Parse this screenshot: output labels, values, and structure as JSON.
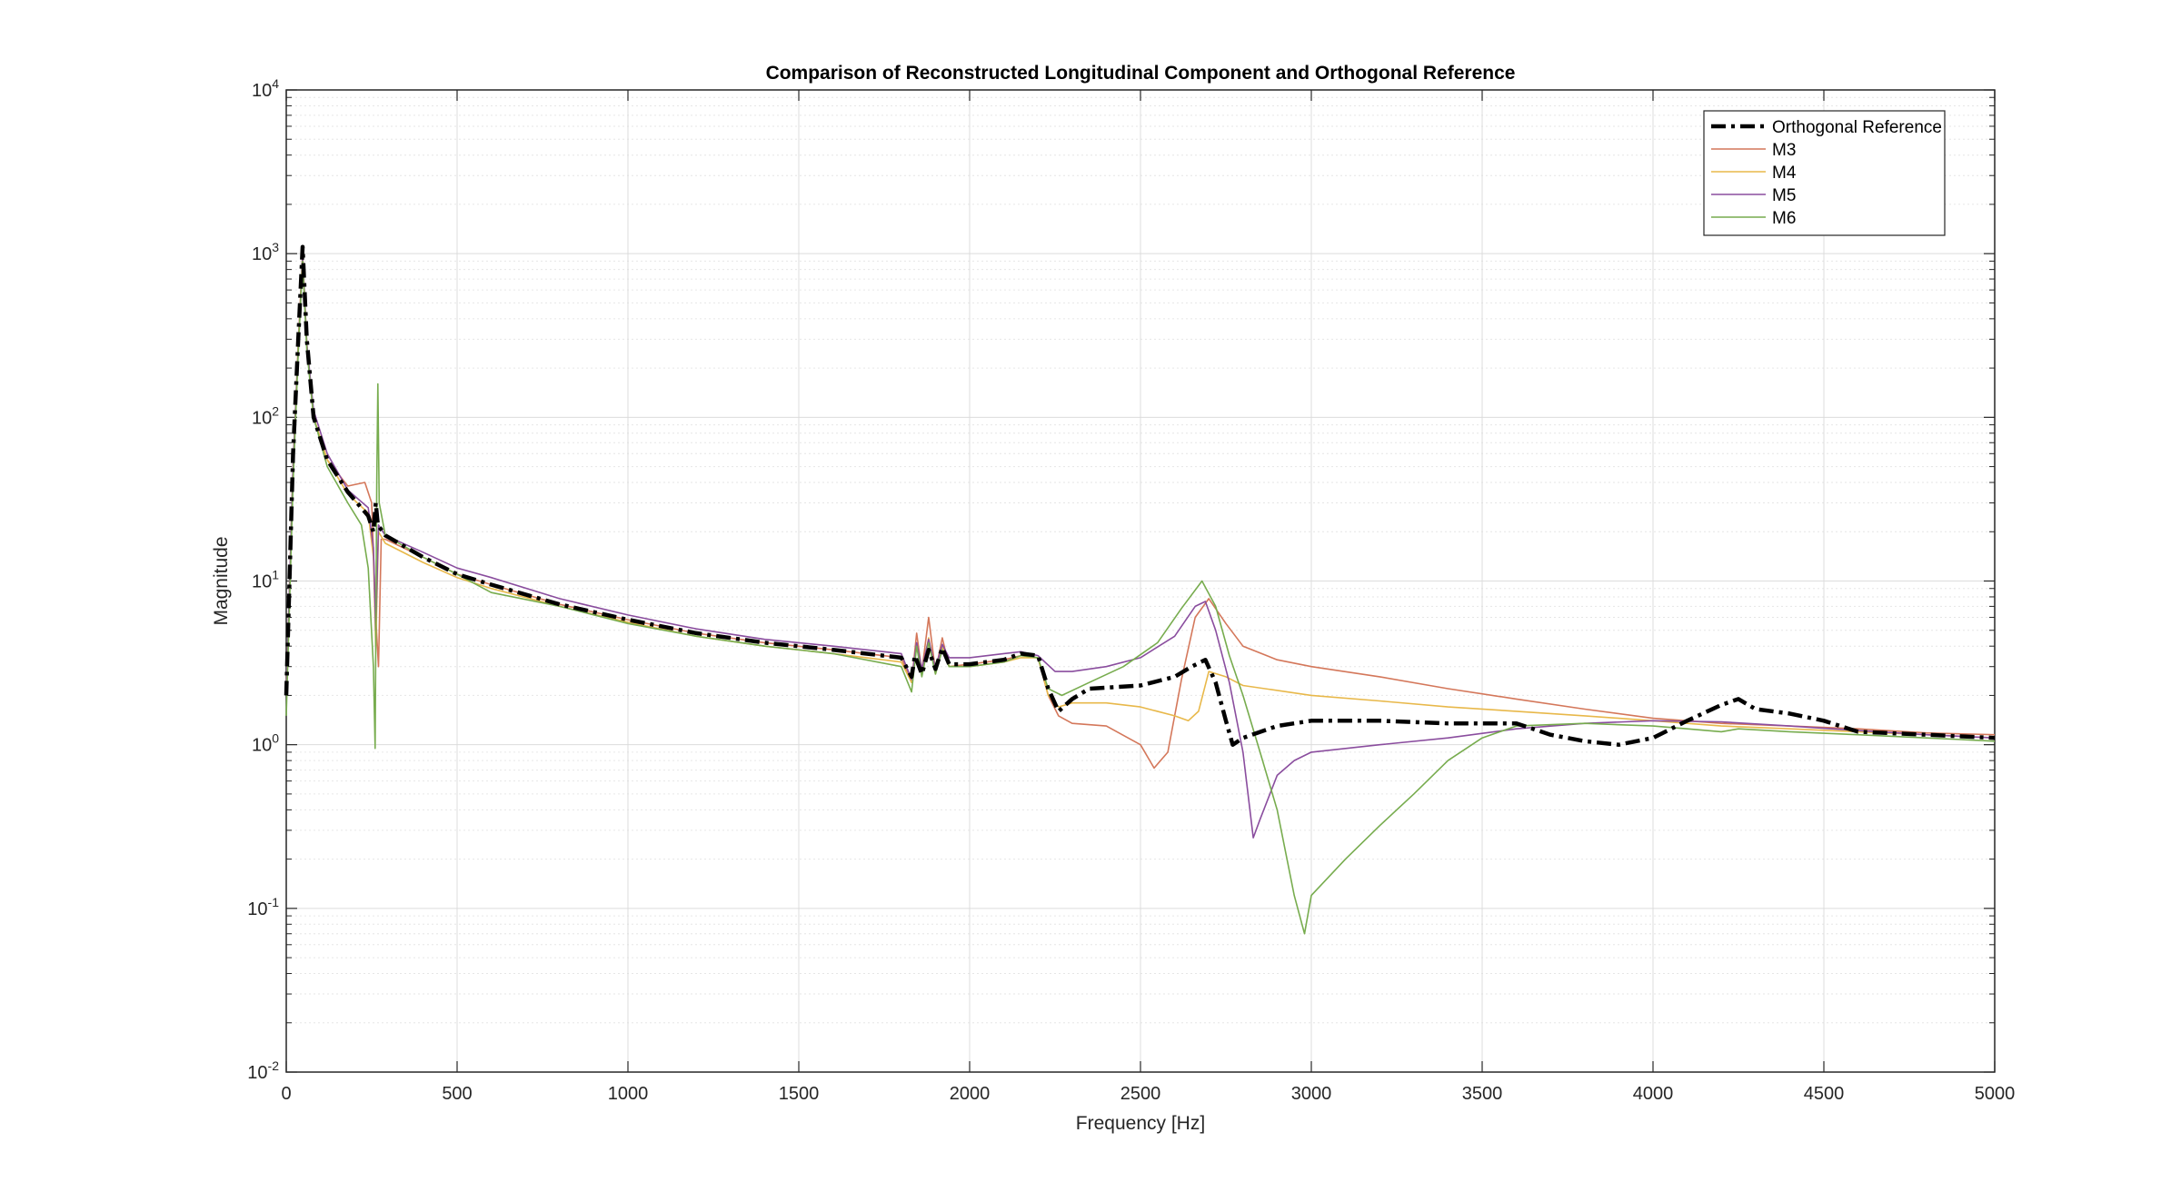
{
  "chart_data": {
    "type": "line",
    "title": "Comparison of Reconstructed Longitudinal Component and Orthogonal Reference",
    "xlabel": "Frequency [Hz]",
    "ylabel": "Magnitude",
    "xlim": [
      0,
      5000
    ],
    "ylim": [
      0.01,
      10000
    ],
    "yscale": "log",
    "grid": true,
    "minor_grid": true,
    "legend_position": "top-right",
    "x_ticks": [
      0,
      500,
      1000,
      1500,
      2000,
      2500,
      3000,
      3500,
      4000,
      4500,
      5000
    ],
    "x_tick_labels": [
      "0",
      "500",
      "1000",
      "1500",
      "2000",
      "2500",
      "3000",
      "3500",
      "4000",
      "4500",
      "5000"
    ],
    "y_ticks": [
      0.01,
      0.1,
      1,
      10,
      100,
      1000,
      10000
    ],
    "y_tick_labels": [
      {
        "base": "10",
        "exp": "-2"
      },
      {
        "base": "10",
        "exp": "-1"
      },
      {
        "base": "10",
        "exp": "0"
      },
      {
        "base": "10",
        "exp": "1"
      },
      {
        "base": "10",
        "exp": "2"
      },
      {
        "base": "10",
        "exp": "3"
      },
      {
        "base": "10",
        "exp": "4"
      }
    ],
    "series": [
      {
        "name": "Orthogonal Reference",
        "color": "#000000",
        "style": "dashdot",
        "points": [
          [
            0,
            2
          ],
          [
            20,
            60
          ],
          [
            35,
            300
          ],
          [
            48,
            1100
          ],
          [
            60,
            300
          ],
          [
            80,
            100
          ],
          [
            120,
            55
          ],
          [
            180,
            35
          ],
          [
            240,
            25
          ],
          [
            255,
            20
          ],
          [
            262,
            30
          ],
          [
            268,
            22
          ],
          [
            290,
            19
          ],
          [
            400,
            14
          ],
          [
            500,
            11
          ],
          [
            600,
            9.5
          ],
          [
            800,
            7.2
          ],
          [
            1000,
            5.8
          ],
          [
            1200,
            4.8
          ],
          [
            1400,
            4.2
          ],
          [
            1600,
            3.8
          ],
          [
            1800,
            3.4
          ],
          [
            1830,
            2.6
          ],
          [
            1840,
            3.5
          ],
          [
            1860,
            2.7
          ],
          [
            1880,
            3.8
          ],
          [
            1900,
            2.9
          ],
          [
            1920,
            3.9
          ],
          [
            1940,
            3.1
          ],
          [
            2000,
            3.1
          ],
          [
            2100,
            3.3
          ],
          [
            2150,
            3.6
          ],
          [
            2200,
            3.5
          ],
          [
            2230,
            2.2
          ],
          [
            2260,
            1.6
          ],
          [
            2300,
            1.9
          ],
          [
            2350,
            2.2
          ],
          [
            2500,
            2.3
          ],
          [
            2600,
            2.6
          ],
          [
            2650,
            3.0
          ],
          [
            2690,
            3.3
          ],
          [
            2720,
            2.4
          ],
          [
            2750,
            1.4
          ],
          [
            2770,
            1.0
          ],
          [
            2800,
            1.1
          ],
          [
            2900,
            1.3
          ],
          [
            3000,
            1.4
          ],
          [
            3200,
            1.4
          ],
          [
            3400,
            1.35
          ],
          [
            3600,
            1.35
          ],
          [
            3700,
            1.15
          ],
          [
            3800,
            1.05
          ],
          [
            3900,
            1.0
          ],
          [
            4000,
            1.1
          ],
          [
            4100,
            1.4
          ],
          [
            4200,
            1.75
          ],
          [
            4250,
            1.9
          ],
          [
            4300,
            1.65
          ],
          [
            4400,
            1.55
          ],
          [
            4500,
            1.4
          ],
          [
            4600,
            1.2
          ],
          [
            4800,
            1.15
          ],
          [
            5000,
            1.1
          ]
        ]
      },
      {
        "name": "M3",
        "color": "#d4775a",
        "style": "solid",
        "points": [
          [
            0,
            2
          ],
          [
            20,
            50
          ],
          [
            35,
            280
          ],
          [
            48,
            1000
          ],
          [
            60,
            280
          ],
          [
            80,
            100
          ],
          [
            120,
            55
          ],
          [
            180,
            38
          ],
          [
            230,
            40
          ],
          [
            250,
            30
          ],
          [
            262,
            6
          ],
          [
            270,
            3
          ],
          [
            278,
            18
          ],
          [
            290,
            18
          ],
          [
            400,
            14
          ],
          [
            500,
            11
          ],
          [
            600,
            9.5
          ],
          [
            800,
            7.2
          ],
          [
            1000,
            5.8
          ],
          [
            1200,
            4.8
          ],
          [
            1400,
            4.2
          ],
          [
            1600,
            3.8
          ],
          [
            1800,
            3.4
          ],
          [
            1830,
            2.4
          ],
          [
            1845,
            4.8
          ],
          [
            1860,
            2.8
          ],
          [
            1880,
            6
          ],
          [
            1900,
            2.8
          ],
          [
            1920,
            4.5
          ],
          [
            1940,
            3
          ],
          [
            2000,
            3.1
          ],
          [
            2100,
            3.3
          ],
          [
            2150,
            3.5
          ],
          [
            2200,
            3.4
          ],
          [
            2230,
            2.0
          ],
          [
            2260,
            1.5
          ],
          [
            2300,
            1.35
          ],
          [
            2400,
            1.3
          ],
          [
            2500,
            1.0
          ],
          [
            2540,
            0.72
          ],
          [
            2580,
            0.9
          ],
          [
            2620,
            2.5
          ],
          [
            2660,
            6
          ],
          [
            2700,
            7.8
          ],
          [
            2750,
            5.5
          ],
          [
            2800,
            4.0
          ],
          [
            2900,
            3.3
          ],
          [
            3000,
            3.0
          ],
          [
            3200,
            2.6
          ],
          [
            3400,
            2.2
          ],
          [
            3600,
            1.9
          ],
          [
            3800,
            1.65
          ],
          [
            4000,
            1.45
          ],
          [
            4200,
            1.35
          ],
          [
            4400,
            1.3
          ],
          [
            4600,
            1.25
          ],
          [
            4800,
            1.18
          ],
          [
            5000,
            1.15
          ]
        ]
      },
      {
        "name": "M4",
        "color": "#e8b84a",
        "style": "solid",
        "points": [
          [
            0,
            2
          ],
          [
            20,
            50
          ],
          [
            35,
            270
          ],
          [
            48,
            950
          ],
          [
            60,
            280
          ],
          [
            80,
            100
          ],
          [
            120,
            55
          ],
          [
            180,
            34
          ],
          [
            240,
            26
          ],
          [
            255,
            14
          ],
          [
            262,
            4
          ],
          [
            270,
            20
          ],
          [
            290,
            17
          ],
          [
            400,
            13
          ],
          [
            500,
            10.5
          ],
          [
            600,
            9
          ],
          [
            800,
            7
          ],
          [
            1000,
            5.6
          ],
          [
            1200,
            4.6
          ],
          [
            1400,
            4.0
          ],
          [
            1600,
            3.6
          ],
          [
            1800,
            3.2
          ],
          [
            1830,
            2.4
          ],
          [
            1845,
            4.0
          ],
          [
            1860,
            2.8
          ],
          [
            1880,
            4.5
          ],
          [
            1900,
            2.7
          ],
          [
            1920,
            4.0
          ],
          [
            1940,
            3.0
          ],
          [
            2000,
            3.0
          ],
          [
            2100,
            3.2
          ],
          [
            2150,
            3.4
          ],
          [
            2200,
            3.4
          ],
          [
            2230,
            2.0
          ],
          [
            2260,
            1.7
          ],
          [
            2300,
            1.8
          ],
          [
            2400,
            1.8
          ],
          [
            2500,
            1.7
          ],
          [
            2600,
            1.5
          ],
          [
            2640,
            1.4
          ],
          [
            2670,
            1.6
          ],
          [
            2700,
            2.8
          ],
          [
            2750,
            2.6
          ],
          [
            2800,
            2.3
          ],
          [
            3000,
            2.0
          ],
          [
            3200,
            1.85
          ],
          [
            3400,
            1.7
          ],
          [
            3600,
            1.6
          ],
          [
            3800,
            1.5
          ],
          [
            4000,
            1.4
          ],
          [
            4200,
            1.3
          ],
          [
            4400,
            1.25
          ],
          [
            4600,
            1.2
          ],
          [
            4800,
            1.15
          ],
          [
            5000,
            1.1
          ]
        ]
      },
      {
        "name": "M5",
        "color": "#8a4d9e",
        "style": "solid",
        "points": [
          [
            0,
            2
          ],
          [
            20,
            50
          ],
          [
            35,
            260
          ],
          [
            48,
            950
          ],
          [
            60,
            280
          ],
          [
            80,
            110
          ],
          [
            120,
            60
          ],
          [
            180,
            36
          ],
          [
            240,
            28
          ],
          [
            255,
            16
          ],
          [
            262,
            5
          ],
          [
            270,
            22
          ],
          [
            290,
            19
          ],
          [
            400,
            15
          ],
          [
            500,
            12
          ],
          [
            600,
            10.5
          ],
          [
            800,
            7.8
          ],
          [
            1000,
            6.2
          ],
          [
            1200,
            5.1
          ],
          [
            1400,
            4.4
          ],
          [
            1600,
            4.0
          ],
          [
            1800,
            3.6
          ],
          [
            1830,
            2.5
          ],
          [
            1845,
            4.2
          ],
          [
            1860,
            2.9
          ],
          [
            1880,
            4.4
          ],
          [
            1900,
            2.9
          ],
          [
            1920,
            4.1
          ],
          [
            1940,
            3.4
          ],
          [
            2000,
            3.4
          ],
          [
            2100,
            3.6
          ],
          [
            2150,
            3.7
          ],
          [
            2200,
            3.5
          ],
          [
            2250,
            2.8
          ],
          [
            2300,
            2.8
          ],
          [
            2400,
            3.0
          ],
          [
            2500,
            3.4
          ],
          [
            2600,
            4.6
          ],
          [
            2660,
            7
          ],
          [
            2690,
            7.5
          ],
          [
            2720,
            5
          ],
          [
            2760,
            2.4
          ],
          [
            2800,
            0.9
          ],
          [
            2830,
            0.27
          ],
          [
            2850,
            0.35
          ],
          [
            2900,
            0.65
          ],
          [
            2950,
            0.8
          ],
          [
            3000,
            0.9
          ],
          [
            3200,
            1.0
          ],
          [
            3400,
            1.1
          ],
          [
            3600,
            1.25
          ],
          [
            3800,
            1.35
          ],
          [
            4000,
            1.4
          ],
          [
            4200,
            1.38
          ],
          [
            4400,
            1.3
          ],
          [
            4600,
            1.22
          ],
          [
            4800,
            1.15
          ],
          [
            5000,
            1.1
          ]
        ]
      },
      {
        "name": "M6",
        "color": "#77ac4e",
        "style": "solid",
        "points": [
          [
            0,
            1.5
          ],
          [
            20,
            40
          ],
          [
            35,
            250
          ],
          [
            48,
            900
          ],
          [
            60,
            260
          ],
          [
            80,
            100
          ],
          [
            120,
            50
          ],
          [
            180,
            30
          ],
          [
            220,
            22
          ],
          [
            240,
            12
          ],
          [
            255,
            3
          ],
          [
            260,
            0.95
          ],
          [
            265,
            40
          ],
          [
            268,
            160
          ],
          [
            272,
            30
          ],
          [
            290,
            19
          ],
          [
            400,
            14
          ],
          [
            500,
            11
          ],
          [
            600,
            8.5
          ],
          [
            800,
            7.0
          ],
          [
            1000,
            5.5
          ],
          [
            1200,
            4.6
          ],
          [
            1400,
            4.0
          ],
          [
            1600,
            3.6
          ],
          [
            1800,
            3.0
          ],
          [
            1830,
            2.1
          ],
          [
            1845,
            4.0
          ],
          [
            1860,
            2.6
          ],
          [
            1880,
            4.2
          ],
          [
            1900,
            2.7
          ],
          [
            1920,
            3.8
          ],
          [
            1940,
            3.0
          ],
          [
            2000,
            3.0
          ],
          [
            2100,
            3.2
          ],
          [
            2150,
            3.5
          ],
          [
            2200,
            3.4
          ],
          [
            2230,
            2.2
          ],
          [
            2270,
            2.0
          ],
          [
            2350,
            2.4
          ],
          [
            2450,
            3.0
          ],
          [
            2550,
            4.2
          ],
          [
            2620,
            6.8
          ],
          [
            2680,
            10
          ],
          [
            2720,
            7
          ],
          [
            2760,
            3.5
          ],
          [
            2800,
            2.0
          ],
          [
            2850,
            0.9
          ],
          [
            2900,
            0.4
          ],
          [
            2950,
            0.12
          ],
          [
            2980,
            0.07
          ],
          [
            3000,
            0.12
          ],
          [
            3100,
            0.2
          ],
          [
            3200,
            0.32
          ],
          [
            3300,
            0.5
          ],
          [
            3400,
            0.8
          ],
          [
            3500,
            1.1
          ],
          [
            3600,
            1.3
          ],
          [
            3800,
            1.35
          ],
          [
            4000,
            1.3
          ],
          [
            4100,
            1.25
          ],
          [
            4200,
            1.2
          ],
          [
            4250,
            1.25
          ],
          [
            4400,
            1.2
          ],
          [
            4600,
            1.15
          ],
          [
            4800,
            1.1
          ],
          [
            5000,
            1.05
          ]
        ]
      }
    ]
  }
}
